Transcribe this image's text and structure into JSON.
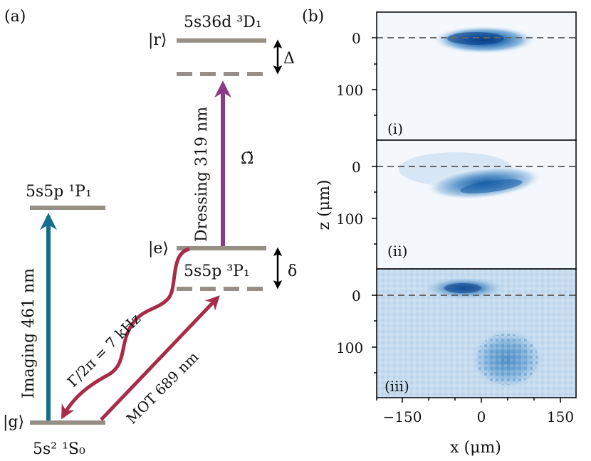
{
  "panel_a": {
    "tag": "(a)",
    "states": {
      "r_ket": "|r⟩",
      "r_name": "5s36d ³D₁",
      "e_ket": "|e⟩",
      "e_name": "5s5p ³P₁",
      "g_ket": "|g⟩",
      "g_name": "5s² ¹S₀",
      "p1_name": "5s5p ¹P₁"
    },
    "detunings": {
      "big": "Δ",
      "small": "δ"
    },
    "transitions": {
      "imaging": "Imaging 461 nm",
      "dressing": "Dressing 319 nm",
      "rabi": "Ω̃",
      "decay": "Γ/2π = 7 kHz",
      "mot": "MOT 689 nm"
    },
    "colors": {
      "level": "#958f86",
      "imaging": "#136f8c",
      "dressing": "#8a3a86",
      "mot": "#a82c4a"
    }
  },
  "panel_b": {
    "tag": "(b)",
    "subpanels": [
      {
        "label": "(i)"
      },
      {
        "label": "(ii)"
      },
      {
        "label": "(iii)"
      }
    ],
    "z_ticks": [
      "0",
      "100"
    ],
    "x_ticks": [
      "−150",
      "0",
      "150"
    ],
    "xlabel": "x (μm)",
    "ylabel": "z (μm)",
    "colormap": "Blues"
  }
}
